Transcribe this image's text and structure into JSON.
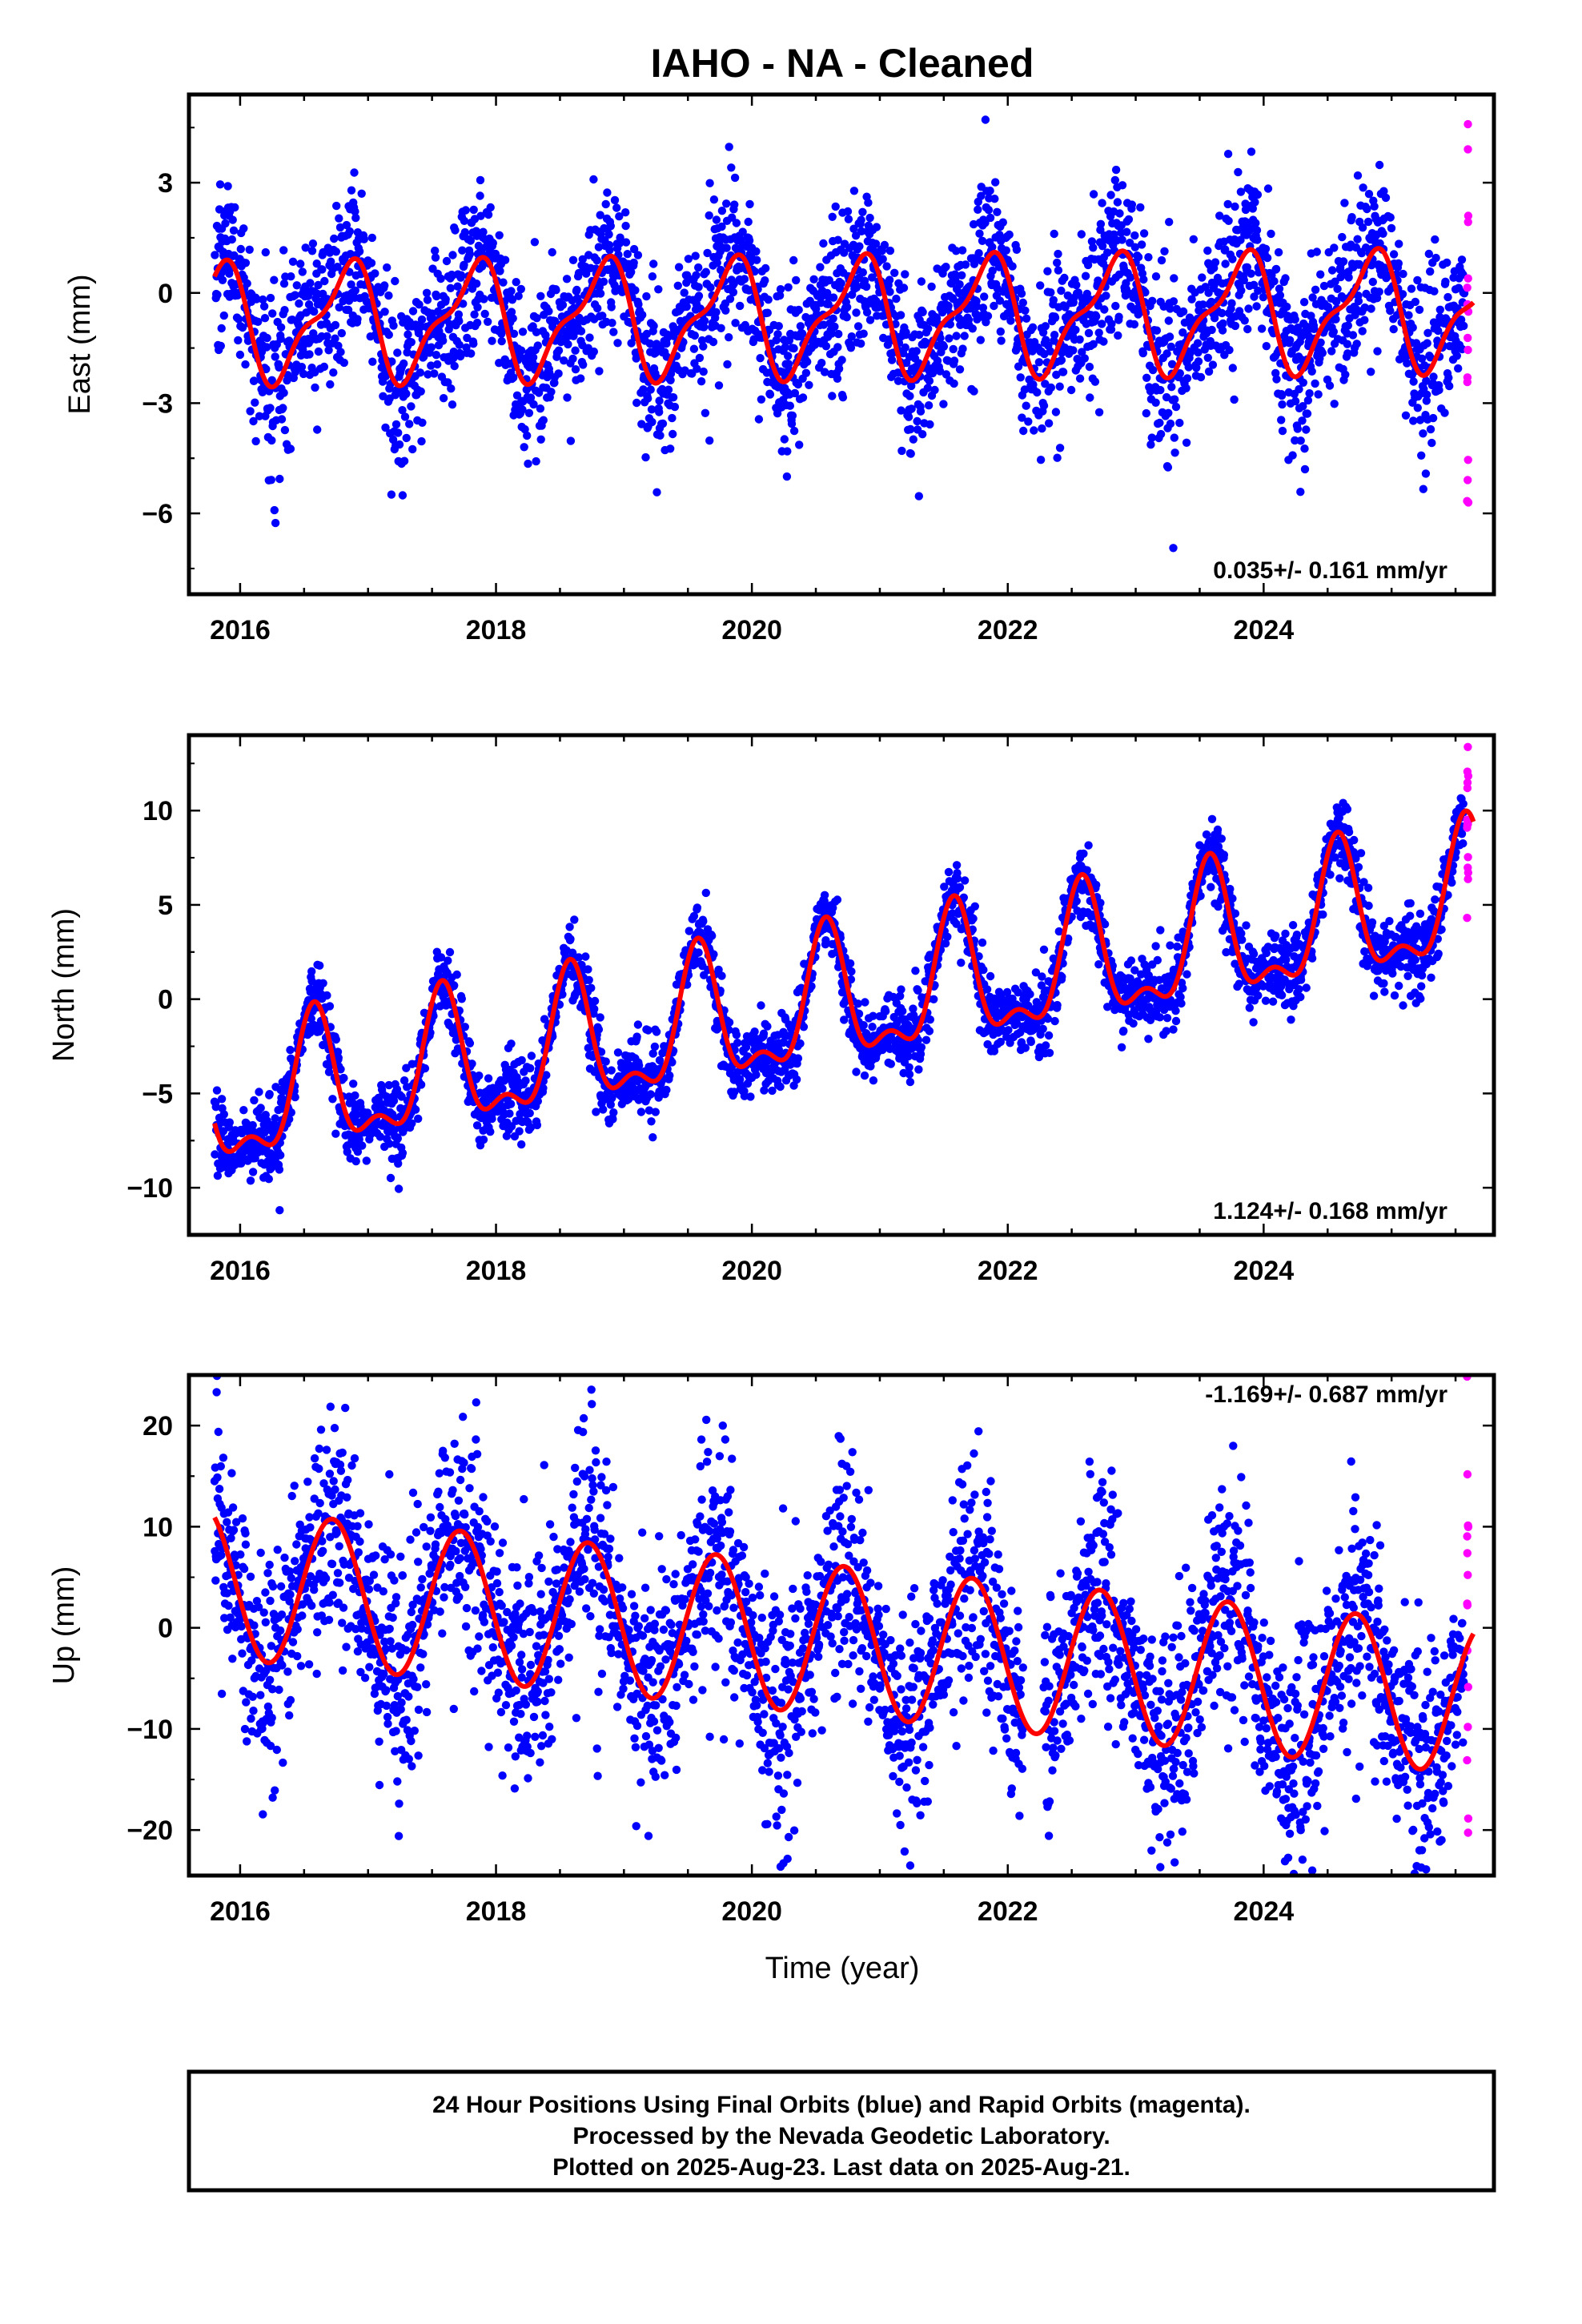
{
  "title": "IAHO  - NA - Cleaned",
  "xlabel": "Time (year)",
  "x_ticks": [
    "2016",
    "2018",
    "2020",
    "2022",
    "2024"
  ],
  "colors": {
    "final_orbits": "#0000ff",
    "rapid_orbits": "#ff00ff",
    "model": "#ff0000"
  },
  "caption": [
    "24 Hour Positions Using Final Orbits (blue) and Rapid Orbits (magenta).",
    "Processed by the Nevada Geodetic Laboratory.",
    "Plotted on 2025-Aug-23. Last data on 2025-Aug-21."
  ],
  "chart_data": [
    {
      "type": "scatter",
      "ylabel": "East (mm)",
      "rate_text": "0.035+/- 0.161 mm/yr",
      "xlim": [
        2015.6,
        2025.8
      ],
      "ylim": [
        -8.2,
        5.4
      ],
      "y_ticks": [
        3,
        0,
        -3,
        -6
      ],
      "y_tick_labels": [
        "3",
        "0",
        "−3",
        "−6"
      ],
      "data_start": 2015.8,
      "rapid_start": 2025.57,
      "data_end": 2025.64,
      "trend": {
        "offset": -0.65,
        "rate": 0.035,
        "ref_year": 2020.7
      },
      "seasonal": {
        "annual_amp": 1.45,
        "annual_peak": 2015.82,
        "semi_amp": 0.55,
        "semi_peak": 2015.95
      },
      "scatter_sd": 1.0,
      "gaps": [],
      "line_end": 2025.64
    },
    {
      "type": "scatter",
      "ylabel": "North (mm)",
      "rate_text": "1.124+/- 0.168 mm/yr",
      "xlim": [
        2015.6,
        2025.8
      ],
      "ylim": [
        -12.5,
        14.0
      ],
      "y_ticks": [
        10,
        5,
        0,
        -5,
        -10
      ],
      "y_tick_labels": [
        "10",
        "5",
        "0",
        "−5",
        "−10"
      ],
      "data_start": 2015.8,
      "rapid_start": 2025.57,
      "data_end": 2025.64,
      "trend": {
        "offset": -0.3,
        "rate": 1.124,
        "ref_year": 2020.7
      },
      "seasonal": {
        "annual_amp": 3.3,
        "annual_peak": 2015.58,
        "semi_amp": 1.5,
        "semi_peak": 2015.58
      },
      "scatter_sd": 0.9,
      "gaps": [],
      "line_end": 2025.64
    },
    {
      "type": "scatter",
      "ylabel": "Up (mm)",
      "rate_text": "-1.169+/- 0.687 mm/yr",
      "xlim": [
        2015.6,
        2025.8
      ],
      "ylim": [
        -24.5,
        25.0
      ],
      "y_ticks": [
        20,
        10,
        0,
        -10,
        -20
      ],
      "y_tick_labels": [
        "20",
        "10",
        "0",
        "−10",
        "−20"
      ],
      "data_start": 2015.8,
      "rapid_start": 2025.57,
      "data_end": 2025.64,
      "trend": {
        "offset": -1.3,
        "rate": -1.169,
        "ref_year": 2020.7
      },
      "seasonal": {
        "annual_amp": 7.4,
        "annual_peak": 2015.72,
        "semi_amp": 0.0,
        "semi_peak": 2015.72
      },
      "scatter_sd": 5.0,
      "gaps": [
        [
          2022.12,
          2022.28
        ]
      ],
      "line_end": 2025.64
    }
  ]
}
